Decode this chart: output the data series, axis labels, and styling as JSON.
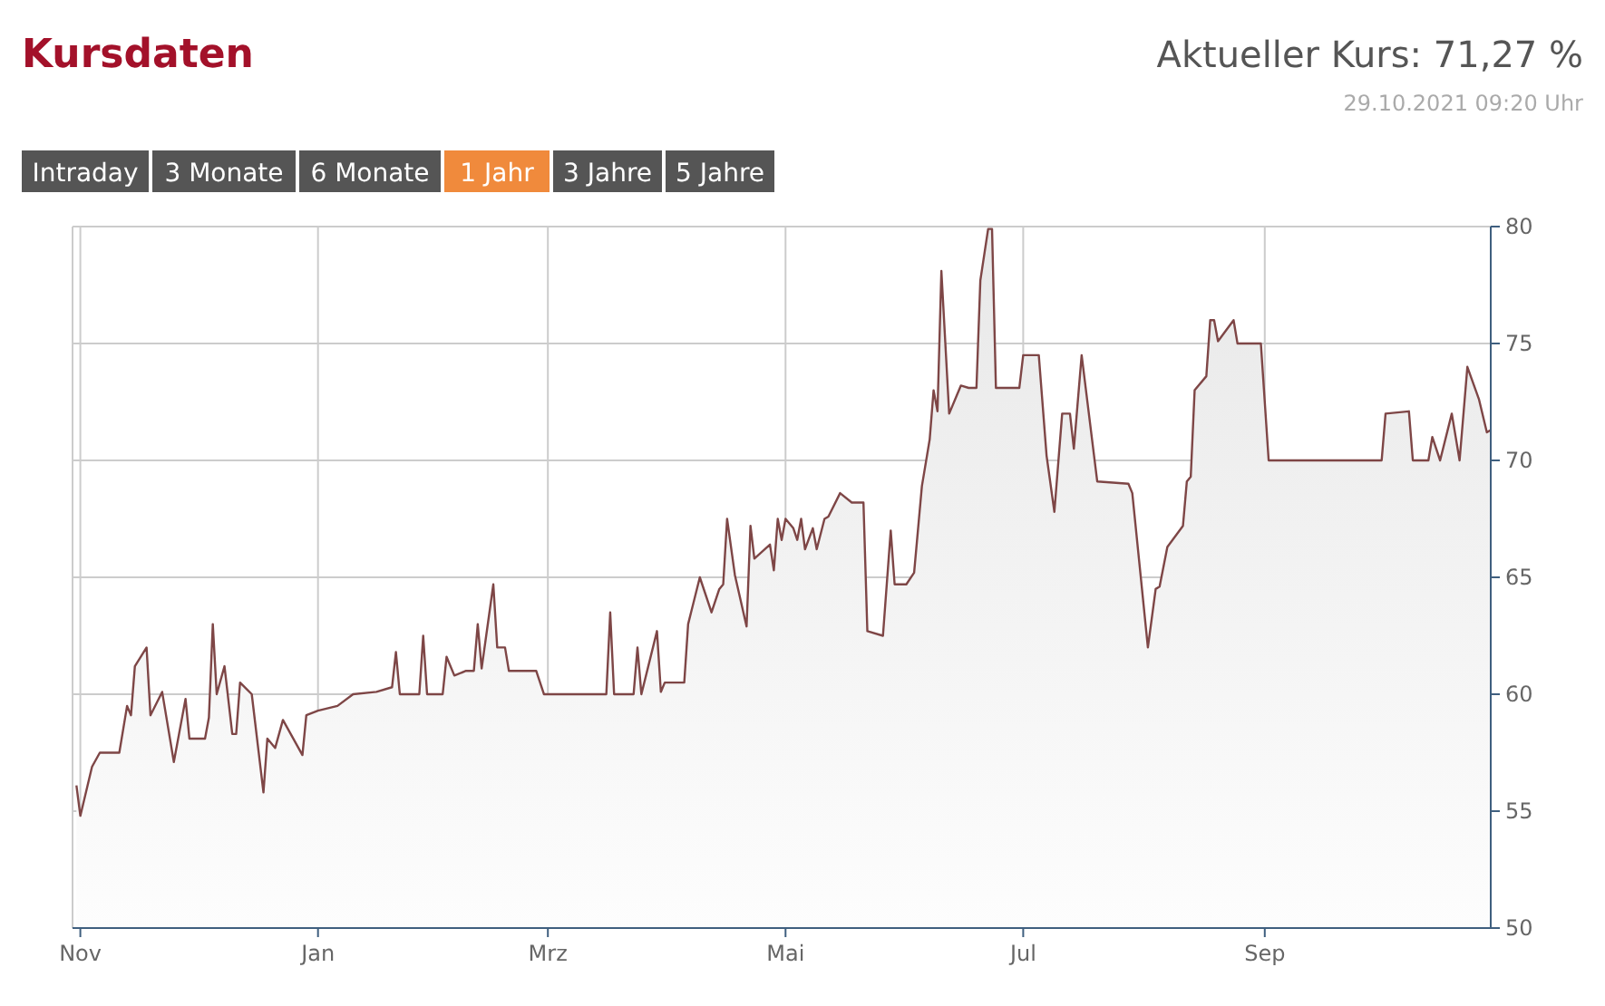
{
  "chart_data": {
    "type": "area",
    "title": "Kursdaten",
    "annotations": [
      "Aktueller Kurs: 71,27 %",
      "29.10.2021 09:20 Uhr",
      "Intraday",
      "3 Monate",
      "6 Monate",
      "1 Jahr",
      "3 Jahre",
      "5 Jahre"
    ],
    "x": [
      "2020-10-31",
      "2020-11-01",
      "2020-11-04",
      "2020-11-06",
      "2020-11-11",
      "2020-11-13",
      "2020-11-14",
      "2020-11-15",
      "2020-11-18",
      "2020-11-19",
      "2020-11-22",
      "2020-11-25",
      "2020-11-27",
      "2020-11-28",
      "2020-11-29",
      "2020-12-03",
      "2020-12-04",
      "2020-12-05",
      "2020-12-06",
      "2020-12-08",
      "2020-12-10",
      "2020-12-11",
      "2020-12-12",
      "2020-12-15",
      "2020-12-18",
      "2020-12-19",
      "2020-12-21",
      "2020-12-23",
      "2020-12-28",
      "2020-12-29",
      "2021-01-01",
      "2021-01-06",
      "2021-01-10",
      "2021-01-16",
      "2021-01-20",
      "2021-01-21",
      "2021-01-22",
      "2021-01-27",
      "2021-01-28",
      "2021-01-29",
      "2021-02-02",
      "2021-02-03",
      "2021-02-05",
      "2021-02-08",
      "2021-02-10",
      "2021-02-11",
      "2021-02-12",
      "2021-02-15",
      "2021-02-16",
      "2021-02-18",
      "2021-02-19",
      "2021-02-26",
      "2021-02-28",
      "2021-03-16",
      "2021-03-17",
      "2021-03-18",
      "2021-03-23",
      "2021-03-24",
      "2021-03-25",
      "2021-03-29",
      "2021-03-30",
      "2021-03-31",
      "2021-04-05",
      "2021-04-06",
      "2021-04-09",
      "2021-04-12",
      "2021-04-14",
      "2021-04-15",
      "2021-04-16",
      "2021-04-18",
      "2021-04-21",
      "2021-04-22",
      "2021-04-23",
      "2021-04-27",
      "2021-04-28",
      "2021-04-29",
      "2021-04-30",
      "2021-05-01",
      "2021-05-03",
      "2021-05-04",
      "2021-05-05",
      "2021-05-06",
      "2021-05-08",
      "2021-05-09",
      "2021-05-11",
      "2021-05-12",
      "2021-05-15",
      "2021-05-18",
      "2021-05-21",
      "2021-05-22",
      "2021-05-26",
      "2021-05-28",
      "2021-05-29",
      "2021-06-01",
      "2021-06-03",
      "2021-06-05",
      "2021-06-07",
      "2021-06-08",
      "2021-06-09",
      "2021-06-10",
      "2021-06-12",
      "2021-06-14",
      "2021-06-15",
      "2021-06-17",
      "2021-06-19",
      "2021-06-20",
      "2021-06-22",
      "2021-06-23",
      "2021-06-24",
      "2021-06-30",
      "2021-07-01",
      "2021-07-05",
      "2021-07-07",
      "2021-07-09",
      "2021-07-11",
      "2021-07-13",
      "2021-07-14",
      "2021-07-16",
      "2021-07-20",
      "2021-07-28",
      "2021-07-29",
      "2021-08-02",
      "2021-08-04",
      "2021-08-05",
      "2021-08-07",
      "2021-08-11",
      "2021-08-12",
      "2021-08-13",
      "2021-08-14",
      "2021-08-17",
      "2021-08-18",
      "2021-08-19",
      "2021-08-20",
      "2021-08-24",
      "2021-08-25",
      "2021-08-31",
      "2021-09-02",
      "2021-10-01",
      "2021-10-02",
      "2021-10-08",
      "2021-10-09",
      "2021-10-13",
      "2021-10-14",
      "2021-10-16",
      "2021-10-19",
      "2021-10-21",
      "2021-10-23",
      "2021-10-26",
      "2021-10-28",
      "2021-10-29"
    ],
    "series": [
      {
        "color": "#7e4646",
        "values": [
          56.1,
          54.8,
          56.9,
          57.5,
          57.5,
          59.5,
          59.1,
          61.2,
          62.0,
          59.1,
          60.1,
          57.1,
          58.9,
          59.8,
          58.1,
          58.1,
          59.0,
          63.0,
          60.0,
          61.2,
          58.3,
          58.3,
          60.5,
          60.0,
          55.8,
          58.1,
          57.7,
          58.9,
          57.4,
          59.1,
          59.3,
          59.5,
          60.0,
          60.1,
          60.3,
          61.8,
          60.0,
          60.0,
          62.5,
          60.0,
          60.0,
          61.6,
          60.8,
          61.0,
          61.0,
          63.0,
          61.1,
          64.7,
          62.0,
          62.0,
          61.0,
          61.0,
          60.0,
          60.0,
          63.5,
          60.0,
          60.0,
          62.0,
          60.0,
          62.7,
          60.1,
          60.5,
          60.5,
          63.0,
          65.0,
          63.5,
          64.5,
          64.7,
          67.5,
          65.1,
          62.9,
          67.2,
          65.8,
          66.4,
          65.3,
          67.5,
          66.6,
          67.5,
          67.1,
          66.6,
          67.5,
          66.2,
          67.1,
          66.2,
          67.5,
          67.6,
          68.6,
          68.2,
          68.2,
          62.7,
          62.5,
          67.0,
          64.7,
          64.7,
          65.2,
          68.9,
          70.9,
          73.0,
          72.1,
          78.1,
          72.0,
          72.8,
          73.2,
          73.1,
          73.1,
          77.7,
          79.9,
          79.9,
          73.1,
          73.1,
          74.5,
          74.5,
          70.2,
          67.8,
          72.0,
          72.0,
          70.5,
          74.5,
          69.1,
          69.0,
          68.6,
          62.0,
          64.5,
          64.6,
          66.3,
          67.2,
          69.1,
          69.3,
          73.0,
          73.6,
          76.0,
          76.0,
          75.1,
          76.0,
          75.0,
          75.0,
          70.0,
          70.0,
          72.0,
          72.1,
          70.0,
          70.0,
          71.0,
          70.0,
          72.0,
          70.0,
          74.0,
          72.6,
          71.2,
          71.3
        ]
      }
    ],
    "xlim": [
      "2020-10-30",
      "2021-10-29"
    ],
    "xticks": [
      {
        "value": "2020-11-01",
        "label": "Nov"
      },
      {
        "value": "2021-01-01",
        "label": "Jan"
      },
      {
        "value": "2021-03-01",
        "label": "Mrz"
      },
      {
        "value": "2021-05-01",
        "label": "Mai"
      },
      {
        "value": "2021-07-01",
        "label": "Jul"
      },
      {
        "value": "2021-09-01",
        "label": "Sep"
      }
    ],
    "ylim": [
      50,
      80
    ],
    "yticks": [
      50,
      55,
      60,
      65,
      70,
      75,
      80
    ],
    "grid": true
  }
}
